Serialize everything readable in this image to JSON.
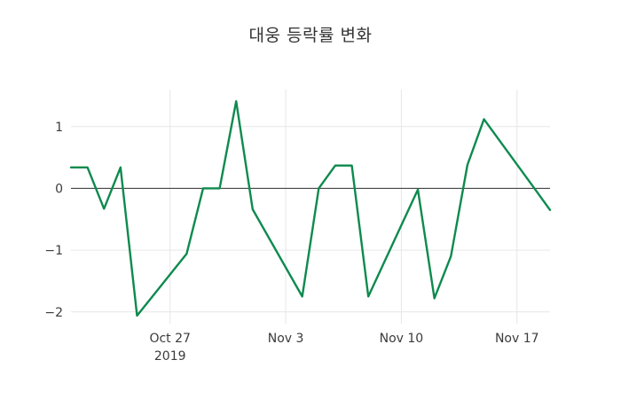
{
  "chart_data": {
    "type": "line",
    "title": "대웅 등락률 변화",
    "xlabel": "",
    "ylabel": "",
    "grid": true,
    "zero_line": true,
    "legend_position": "none",
    "ylim": [
      -2.19,
      1.6
    ],
    "xlim_days": [
      "2019-10-21",
      "2019-11-19"
    ],
    "y_ticks": [
      1,
      0,
      -1,
      -2
    ],
    "x_ticks": [
      {
        "label": "Oct 27",
        "sublabel": "2019",
        "date": "2019-10-27"
      },
      {
        "label": "Nov 3",
        "sublabel": "",
        "date": "2019-11-03"
      },
      {
        "label": "Nov 10",
        "sublabel": "",
        "date": "2019-11-10"
      },
      {
        "label": "Nov 17",
        "sublabel": "",
        "date": "2019-11-17"
      }
    ],
    "series": [
      {
        "name": "대웅 등락률",
        "color": "#0e8a4e",
        "x": [
          "2019-10-21",
          "2019-10-22",
          "2019-10-23",
          "2019-10-24",
          "2019-10-25",
          "2019-10-28",
          "2019-10-29",
          "2019-10-30",
          "2019-10-31",
          "2019-11-01",
          "2019-11-04",
          "2019-11-05",
          "2019-11-06",
          "2019-11-07",
          "2019-11-08",
          "2019-11-11",
          "2019-11-12",
          "2019-11-13",
          "2019-11-14",
          "2019-11-15",
          "2019-11-18",
          "2019-11-19"
        ],
        "values": [
          0.34,
          0.34,
          -0.33,
          0.34,
          -2.06,
          -1.06,
          0.0,
          0.0,
          1.41,
          -0.34,
          -1.75,
          0.0,
          0.37,
          0.37,
          -1.75,
          -0.02,
          -1.78,
          -1.1,
          0.38,
          1.12,
          0.02,
          -0.35
        ]
      }
    ]
  },
  "colors": {
    "line": "#0e8a4e",
    "grid": "#e6e6e6",
    "zero_line": "#444444",
    "tick_label": "#3b3b3b",
    "title": "#333333",
    "background": "#ffffff"
  }
}
